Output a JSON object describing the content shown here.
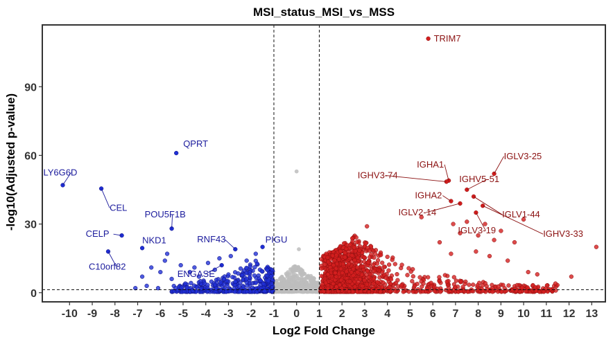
{
  "chart_data": {
    "type": "scatter",
    "title": "MSI_status_MSI_vs_MSS",
    "xlabel": "Log2 Fold Change",
    "ylabel": "-log10(Adjusted p-value)",
    "xlim": [
      -11.2,
      13.6
    ],
    "ylim": [
      -4,
      117
    ],
    "x_ticks": [
      -10,
      -9,
      -8,
      -7,
      -6,
      -5,
      -4,
      -3,
      -2,
      -1,
      0,
      1,
      2,
      3,
      4,
      5,
      6,
      7,
      8,
      9,
      10,
      11,
      12,
      13
    ],
    "y_ticks": [
      0,
      30,
      60,
      90
    ],
    "thresholds": {
      "log2fc": [
        -1,
        1
      ],
      "neg_log10_padj": 1.3
    },
    "grid": false,
    "legend": "none",
    "colors": {
      "down": "#1f2fd6",
      "up": "#d41f1f",
      "ns": "#bdbdbd",
      "down_label": "#1a1a9c",
      "up_label": "#8b1111"
    },
    "labeled_genes": [
      {
        "name": "TRIM7",
        "x": 5.8,
        "y": 111,
        "group": "up"
      },
      {
        "name": "IGHA1",
        "x": 6.7,
        "y": 49,
        "group": "up"
      },
      {
        "name": "IGHV3-74",
        "x": 6.6,
        "y": 48.5,
        "group": "up"
      },
      {
        "name": "IGLV3-25",
        "x": 8.7,
        "y": 52,
        "group": "up"
      },
      {
        "name": "IGHV5-51",
        "x": 7.5,
        "y": 45,
        "group": "up"
      },
      {
        "name": "IGHA2",
        "x": 6.8,
        "y": 40,
        "group": "up"
      },
      {
        "name": "IGLV1-44",
        "x": 7.8,
        "y": 42,
        "group": "up"
      },
      {
        "name": "IGLV2-14",
        "x": 7.2,
        "y": 39,
        "group": "up"
      },
      {
        "name": "IGLV3-19",
        "x": 7.9,
        "y": 35,
        "group": "up"
      },
      {
        "name": "IGHV3-33",
        "x": 8.2,
        "y": 38,
        "group": "up"
      },
      {
        "name": "QPRT",
        "x": -5.3,
        "y": 61,
        "group": "down"
      },
      {
        "name": "LY6G6D",
        "x": -10.3,
        "y": 47,
        "group": "down"
      },
      {
        "name": "CEL",
        "x": -8.6,
        "y": 45.5,
        "group": "down"
      },
      {
        "name": "POU5F1B",
        "x": -5.5,
        "y": 28,
        "group": "down"
      },
      {
        "name": "CELP",
        "x": -7.7,
        "y": 25,
        "group": "down"
      },
      {
        "name": "NKD1",
        "x": -6.8,
        "y": 19.5,
        "group": "down"
      },
      {
        "name": "C10orf82",
        "x": -8.3,
        "y": 18,
        "group": "down"
      },
      {
        "name": "RNF43",
        "x": -2.7,
        "y": 19,
        "group": "down"
      },
      {
        "name": "PIGU",
        "x": -1.5,
        "y": 20,
        "group": "down"
      },
      {
        "name": "ENGASE",
        "x": -3.3,
        "y": 12,
        "group": "down"
      }
    ],
    "extra_points": [
      {
        "x": 0,
        "y": 53,
        "group": "ns"
      },
      {
        "x": 0.1,
        "y": 19,
        "group": "ns"
      },
      {
        "x": 13.2,
        "y": 20,
        "group": "up"
      },
      {
        "x": 12.1,
        "y": 7,
        "group": "up"
      },
      {
        "x": 11.4,
        "y": 4,
        "group": "up"
      },
      {
        "x": 10.6,
        "y": 8,
        "group": "up"
      },
      {
        "x": 10.2,
        "y": 9,
        "group": "up"
      },
      {
        "x": 9.6,
        "y": 22,
        "group": "up"
      },
      {
        "x": 10.0,
        "y": 32,
        "group": "up"
      },
      {
        "x": 9.0,
        "y": 27,
        "group": "up"
      },
      {
        "x": 8.7,
        "y": 23,
        "group": "up"
      },
      {
        "x": 8.3,
        "y": 30,
        "group": "up"
      },
      {
        "x": 7.5,
        "y": 31,
        "group": "up"
      },
      {
        "x": 7.2,
        "y": 26,
        "group": "up"
      },
      {
        "x": 6.9,
        "y": 30,
        "group": "up"
      },
      {
        "x": 5.5,
        "y": 33,
        "group": "up"
      },
      {
        "x": 3.1,
        "y": 29,
        "group": "up"
      },
      {
        "x": 8.5,
        "y": 16,
        "group": "up"
      },
      {
        "x": 7.9,
        "y": 18,
        "group": "up"
      },
      {
        "x": 9.3,
        "y": 14,
        "group": "up"
      },
      {
        "x": 8.0,
        "y": 25,
        "group": "up"
      },
      {
        "x": 6.3,
        "y": 22,
        "group": "up"
      },
      {
        "x": 6.8,
        "y": 17,
        "group": "up"
      },
      {
        "x": -7.1,
        "y": 2,
        "group": "down"
      },
      {
        "x": -6.6,
        "y": 3,
        "group": "down"
      },
      {
        "x": -6.1,
        "y": 2,
        "group": "down"
      },
      {
        "x": -5.8,
        "y": 14,
        "group": "down"
      },
      {
        "x": -5.1,
        "y": 12,
        "group": "down"
      },
      {
        "x": -4.7,
        "y": 9,
        "group": "down"
      },
      {
        "x": -4.3,
        "y": 7,
        "group": "down"
      },
      {
        "x": -6.0,
        "y": 9,
        "group": "down"
      },
      {
        "x": -5.5,
        "y": 6,
        "group": "down"
      },
      {
        "x": -4.9,
        "y": 4,
        "group": "down"
      },
      {
        "x": -3.9,
        "y": 13,
        "group": "down"
      },
      {
        "x": -3.4,
        "y": 15,
        "group": "down"
      },
      {
        "x": -2.9,
        "y": 16,
        "group": "down"
      },
      {
        "x": -2.2,
        "y": 14,
        "group": "down"
      },
      {
        "x": -1.8,
        "y": 17,
        "group": "down"
      },
      {
        "x": -5.7,
        "y": 17,
        "group": "down"
      },
      {
        "x": -6.4,
        "y": 11,
        "group": "down"
      },
      {
        "x": -6.8,
        "y": 7,
        "group": "down"
      },
      {
        "x": -4.5,
        "y": 11,
        "group": "down"
      },
      {
        "x": -3.6,
        "y": 10,
        "group": "down"
      }
    ],
    "bulk": {
      "down": {
        "count": 380,
        "x_range": [
          -5.5,
          -1
        ],
        "y_max": 14,
        "x_mode": -1.8
      },
      "ns": {
        "count": 520,
        "x_range": [
          -1,
          1
        ],
        "y_max": 14,
        "x_mode": 0
      },
      "up": {
        "count": 1500,
        "x_range": [
          1,
          11.5
        ],
        "y_max": 25,
        "x_mode": 2.6
      }
    }
  }
}
